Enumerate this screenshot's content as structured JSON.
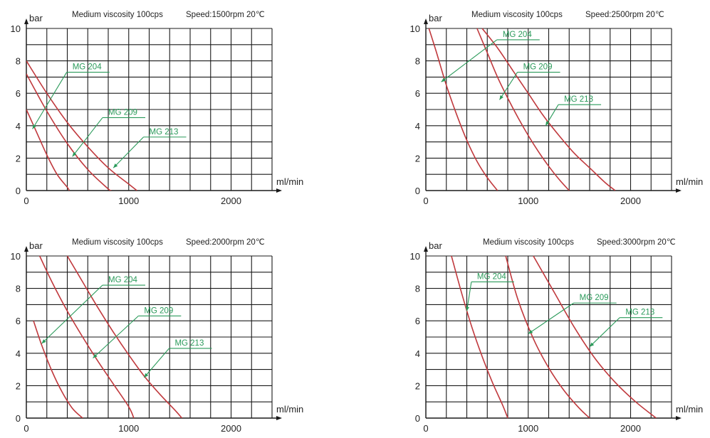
{
  "chart_data": [
    {
      "type": "line",
      "title": "Medium viscosity 100cps",
      "subtitle": "Speed:1500rpm 20℃",
      "xlabel": "ml/min",
      "ylabel": "bar",
      "xlim": [
        0,
        2400
      ],
      "ylim": [
        0,
        10
      ],
      "xticks": [
        "0",
        "1000",
        "2000"
      ],
      "yticks": [
        "0",
        "2",
        "4",
        "6",
        "8",
        "10"
      ],
      "grid": true,
      "series": [
        {
          "name": "MG 204",
          "x": [
            0,
            100,
            200,
            300,
            400,
            420
          ],
          "y": [
            5,
            3.6,
            2.2,
            1,
            0.2,
            0
          ]
        },
        {
          "name": "MG 209",
          "x": [
            0,
            200,
            400,
            600,
            800,
            830
          ],
          "y": [
            7.2,
            4.9,
            2.9,
            1.3,
            0.1,
            0
          ]
        },
        {
          "name": "MG 213",
          "x": [
            0,
            200,
            400,
            600,
            800,
            1000,
            1080
          ],
          "y": [
            8,
            6,
            4.2,
            2.7,
            1.4,
            0.4,
            0
          ]
        }
      ],
      "annotations": [
        {
          "text": "MG 204",
          "label_x": 450,
          "label_y": 7.3,
          "arrow_x": 60,
          "arrow_y": 3.8
        },
        {
          "text": "MG 209",
          "label_x": 800,
          "label_y": 4.5,
          "arrow_x": 450,
          "arrow_y": 2.1
        },
        {
          "text": "MG 213",
          "label_x": 1200,
          "label_y": 3.3,
          "arrow_x": 850,
          "arrow_y": 1.4
        }
      ]
    },
    {
      "type": "line",
      "title": "Medium viscosity 100cps",
      "subtitle": "Speed:2500rpm 20℃",
      "xlabel": "ml/min",
      "ylabel": "bar",
      "xlim": [
        0,
        2400
      ],
      "ylim": [
        0,
        10
      ],
      "xticks": [
        "0",
        "1000",
        "2000"
      ],
      "yticks": [
        "0",
        "2",
        "4",
        "6",
        "8",
        "10"
      ],
      "grid": true,
      "series": [
        {
          "name": "MG 204",
          "x": [
            30,
            100,
            200,
            300,
            400,
            500,
            600,
            700
          ],
          "y": [
            10,
            8.6,
            6.5,
            4.7,
            3.1,
            1.8,
            0.8,
            0
          ]
        },
        {
          "name": "MG 209",
          "x": [
            500,
            600,
            700,
            800,
            900,
            1000,
            1100,
            1200,
            1300,
            1400
          ],
          "y": [
            10,
            8.5,
            7,
            5.7,
            4.5,
            3.4,
            2.4,
            1.5,
            0.7,
            0
          ]
        },
        {
          "name": "MG 213",
          "x": [
            550,
            700,
            850,
            1000,
            1150,
            1300,
            1450,
            1600,
            1750,
            1850
          ],
          "y": [
            10,
            8.8,
            7.4,
            6,
            4.6,
            3.4,
            2.3,
            1.4,
            0.5,
            0
          ]
        }
      ],
      "annotations": [
        {
          "text": "MG 204",
          "label_x": 750,
          "label_y": 9.3,
          "arrow_x": 150,
          "arrow_y": 6.7
        },
        {
          "text": "MG 209",
          "label_x": 950,
          "label_y": 7.3,
          "arrow_x": 720,
          "arrow_y": 5.6
        },
        {
          "text": "MG 213",
          "label_x": 1350,
          "label_y": 5.3,
          "arrow_x": 1170,
          "arrow_y": 4
        },
        {
          "text": "",
          "label_x": 0,
          "label_y": 0,
          "arrow_x": 0,
          "arrow_y": 0
        }
      ]
    },
    {
      "type": "line",
      "title": "Medium viscosity 100cps",
      "subtitle": "Speed:2000rpm 20℃",
      "xlabel": "ml/min",
      "ylabel": "bar",
      "xlim": [
        0,
        2400
      ],
      "ylim": [
        0,
        10
      ],
      "xticks": [
        "0",
        "1000",
        "2000"
      ],
      "yticks": [
        "0",
        "2",
        "4",
        "6",
        "8",
        "10"
      ],
      "grid": true,
      "series": [
        {
          "name": "MG 204",
          "x": [
            70,
            150,
            250,
            350,
            450,
            550
          ],
          "y": [
            6,
            4.5,
            2.9,
            1.6,
            0.6,
            0
          ]
        },
        {
          "name": "MG 209",
          "x": [
            130,
            250,
            400,
            550,
            700,
            850,
            1000,
            1050
          ],
          "y": [
            10,
            8.4,
            6.6,
            5,
            3.5,
            2.1,
            0.7,
            0
          ]
        },
        {
          "name": "MG 213",
          "x": [
            400,
            550,
            700,
            850,
            1000,
            1150,
            1300,
            1450,
            1520
          ],
          "y": [
            10,
            8.4,
            6.8,
            5.3,
            3.9,
            2.6,
            1.5,
            0.5,
            0
          ]
        }
      ],
      "annotations": [
        {
          "text": "MG 204",
          "label_x": 800,
          "label_y": 8.2,
          "arrow_x": 150,
          "arrow_y": 4.6
        },
        {
          "text": "MG 209",
          "label_x": 1150,
          "label_y": 6.3,
          "arrow_x": 650,
          "arrow_y": 3.7
        },
        {
          "text": "MG 213",
          "label_x": 1450,
          "label_y": 4.3,
          "arrow_x": 1150,
          "arrow_y": 2.5
        }
      ]
    },
    {
      "type": "line",
      "title": "Medium viscosity 100cps",
      "subtitle": "Speed:3000rpm 20℃",
      "xlabel": "ml/min",
      "ylabel": "bar",
      "xlim": [
        0,
        2400
      ],
      "ylim": [
        0,
        10
      ],
      "xticks": [
        "0",
        "1000",
        "2000"
      ],
      "yticks": [
        "0",
        "2",
        "4",
        "6",
        "8",
        "10"
      ],
      "grid": true,
      "series": [
        {
          "name": "MG 204",
          "x": [
            250,
            350,
            450,
            550,
            650,
            750,
            800
          ],
          "y": [
            10,
            7.7,
            5.6,
            3.8,
            2.2,
            0.8,
            0
          ]
        },
        {
          "name": "MG 209",
          "x": [
            780,
            900,
            1050,
            1200,
            1350,
            1500,
            1600
          ],
          "y": [
            10,
            7.3,
            4.9,
            3.1,
            1.7,
            0.6,
            0
          ]
        },
        {
          "name": "MG 213",
          "x": [
            1050,
            1250,
            1450,
            1650,
            1850,
            2050,
            2250
          ],
          "y": [
            10,
            7.8,
            5.6,
            3.7,
            2.2,
            1,
            0
          ]
        }
      ],
      "annotations": [
        {
          "text": "MG 204",
          "label_x": 500,
          "label_y": 8.4,
          "arrow_x": 400,
          "arrow_y": 6.6
        },
        {
          "text": "MG 209",
          "label_x": 1500,
          "label_y": 7.1,
          "arrow_x": 1000,
          "arrow_y": 5.2
        },
        {
          "text": "MG 213",
          "label_x": 1950,
          "label_y": 6.2,
          "arrow_x": 1600,
          "arrow_y": 4.4
        }
      ]
    }
  ]
}
